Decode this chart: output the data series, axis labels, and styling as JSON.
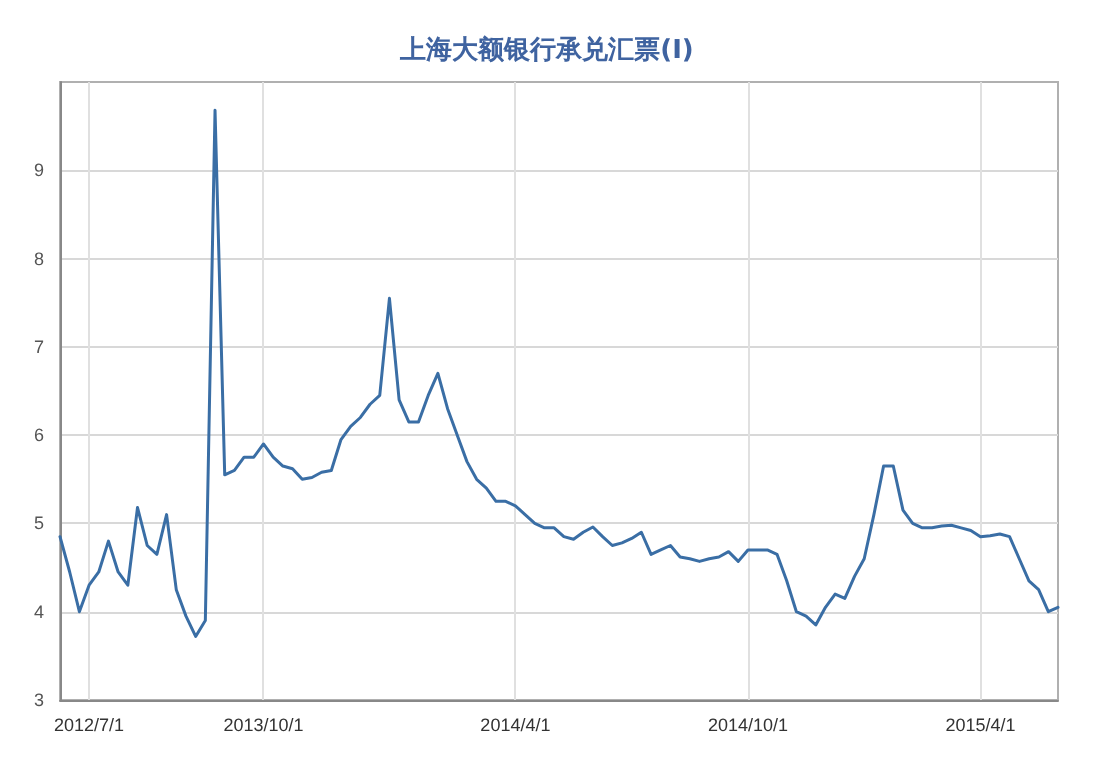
{
  "chart_data": {
    "type": "line",
    "title": "上海大额银行承兑汇票(Ⅰ)",
    "categories": [
      null,
      null,
      null,
      "2012/7/1",
      null,
      null,
      null,
      null,
      null,
      null,
      null,
      null,
      null,
      null,
      null,
      null,
      null,
      null,
      null,
      null,
      null,
      "2013/10/1",
      null,
      null,
      null,
      null,
      null,
      null,
      null,
      null,
      null,
      null,
      null,
      null,
      null,
      null,
      null,
      null,
      null,
      null,
      null,
      null,
      null,
      null,
      null,
      null,
      null,
      "2014/4/1",
      null,
      null,
      null,
      null,
      null,
      null,
      null,
      null,
      null,
      null,
      null,
      null,
      null,
      null,
      null,
      null,
      null,
      null,
      null,
      null,
      null,
      null,
      null,
      "2014/10/1",
      null,
      null,
      null,
      null,
      null,
      null,
      null,
      null,
      null,
      null,
      null,
      null,
      null,
      null,
      null,
      null,
      null,
      null,
      null,
      null,
      null,
      null,
      null,
      "2015/4/1",
      null,
      null,
      null,
      null,
      null,
      null,
      null,
      null
    ],
    "series": [
      {
        "color": "#3a6ea5",
        "values": [
          4.85,
          4.45,
          4.0,
          4.3,
          4.45,
          4.8,
          4.45,
          4.3,
          5.18,
          4.75,
          4.65,
          5.1,
          4.25,
          3.95,
          3.72,
          3.9,
          9.68,
          5.55,
          5.6,
          5.75,
          5.75,
          5.9,
          5.75,
          5.65,
          5.62,
          5.5,
          5.52,
          5.58,
          5.6,
          5.95,
          6.1,
          6.2,
          6.35,
          6.45,
          7.55,
          6.4,
          6.15,
          6.15,
          6.45,
          6.7,
          6.3,
          6.0,
          5.7,
          5.5,
          5.4,
          5.25,
          5.25,
          5.2,
          5.1,
          5.0,
          4.95,
          4.95,
          4.85,
          4.82,
          4.9,
          4.96,
          4.85,
          4.75,
          4.78,
          4.83,
          4.9,
          4.65,
          4.7,
          4.75,
          4.62,
          4.6,
          4.57,
          4.6,
          4.62,
          4.68,
          4.57,
          4.7,
          4.7,
          4.7,
          4.65,
          4.35,
          4.0,
          3.95,
          3.85,
          4.05,
          4.2,
          4.15,
          4.4,
          4.6,
          5.1,
          5.65,
          5.65,
          5.15,
          5.0,
          4.95,
          4.95,
          4.97,
          4.98,
          4.95,
          4.92,
          4.85,
          4.86,
          4.88,
          4.85,
          4.6,
          4.35,
          4.25,
          4.0,
          4.05
        ]
      }
    ],
    "ylim": [
      3,
      10
    ],
    "yticks": [
      3,
      4,
      5,
      6,
      7,
      8,
      9
    ],
    "grid": true,
    "marker": "none",
    "line_style": "solid"
  }
}
